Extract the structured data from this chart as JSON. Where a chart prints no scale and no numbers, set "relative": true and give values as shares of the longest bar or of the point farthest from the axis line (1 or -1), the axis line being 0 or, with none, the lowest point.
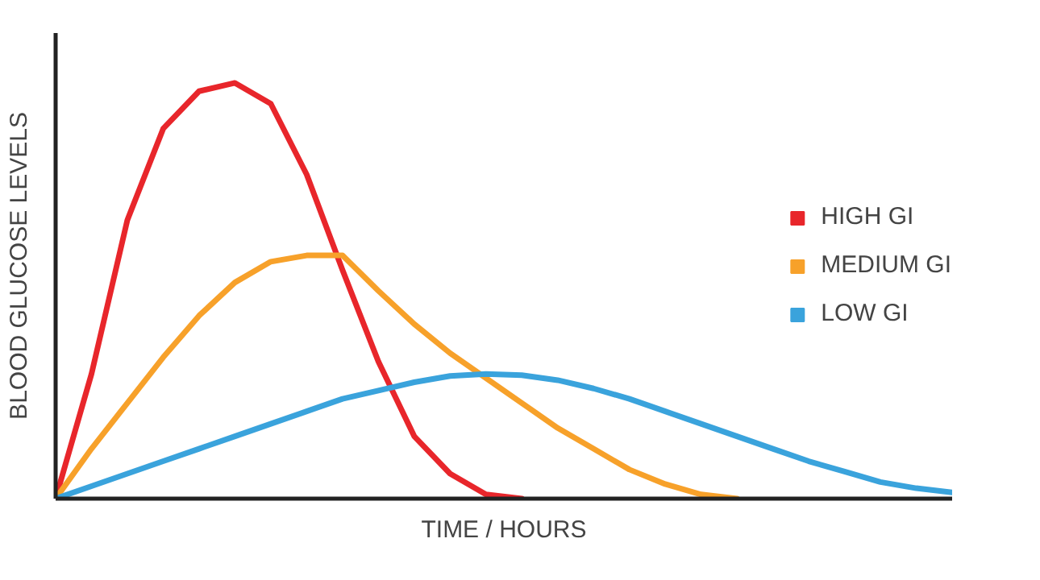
{
  "chart_data": {
    "type": "line",
    "relative": true,
    "xlabel": "TIME / HOURS",
    "ylabel": "BLOOD GLUCOSE LEVELS",
    "legend": "right",
    "line_style": "solid",
    "categories": [
      null,
      null,
      null,
      null,
      null,
      null,
      null,
      null,
      null,
      null,
      null,
      null,
      null,
      null,
      null,
      null,
      null,
      null,
      null,
      null,
      null,
      null,
      null,
      null,
      null,
      null
    ],
    "series": [
      {
        "name": "HIGH GI",
        "color": "#e8262b",
        "values": [
          0,
          0.3,
          0.67,
          0.89,
          0.98,
          1.0,
          0.95,
          0.78,
          0.55,
          0.33,
          0.15,
          0.06,
          0.01,
          0,
          null,
          null,
          null,
          null,
          null,
          null,
          null,
          null,
          null,
          null,
          null,
          null
        ]
      },
      {
        "name": "MEDIUM GI",
        "color": "#f7a12a",
        "values": [
          0,
          0.12,
          0.23,
          0.34,
          0.44,
          0.52,
          0.57,
          0.585,
          0.585,
          0.5,
          0.42,
          0.35,
          0.29,
          0.23,
          0.17,
          0.12,
          0.07,
          0.035,
          0.01,
          0,
          null,
          null,
          null,
          null,
          null,
          null
        ]
      },
      {
        "name": "LOW GI",
        "color": "#3aa3dc",
        "values": [
          0,
          0.03,
          0.06,
          0.09,
          0.12,
          0.15,
          0.18,
          0.21,
          0.24,
          0.26,
          0.28,
          0.295,
          0.3,
          0.297,
          0.285,
          0.265,
          0.24,
          0.21,
          0.18,
          0.15,
          0.12,
          0.09,
          0.065,
          0.04,
          0.025,
          0.015
        ]
      }
    ]
  }
}
